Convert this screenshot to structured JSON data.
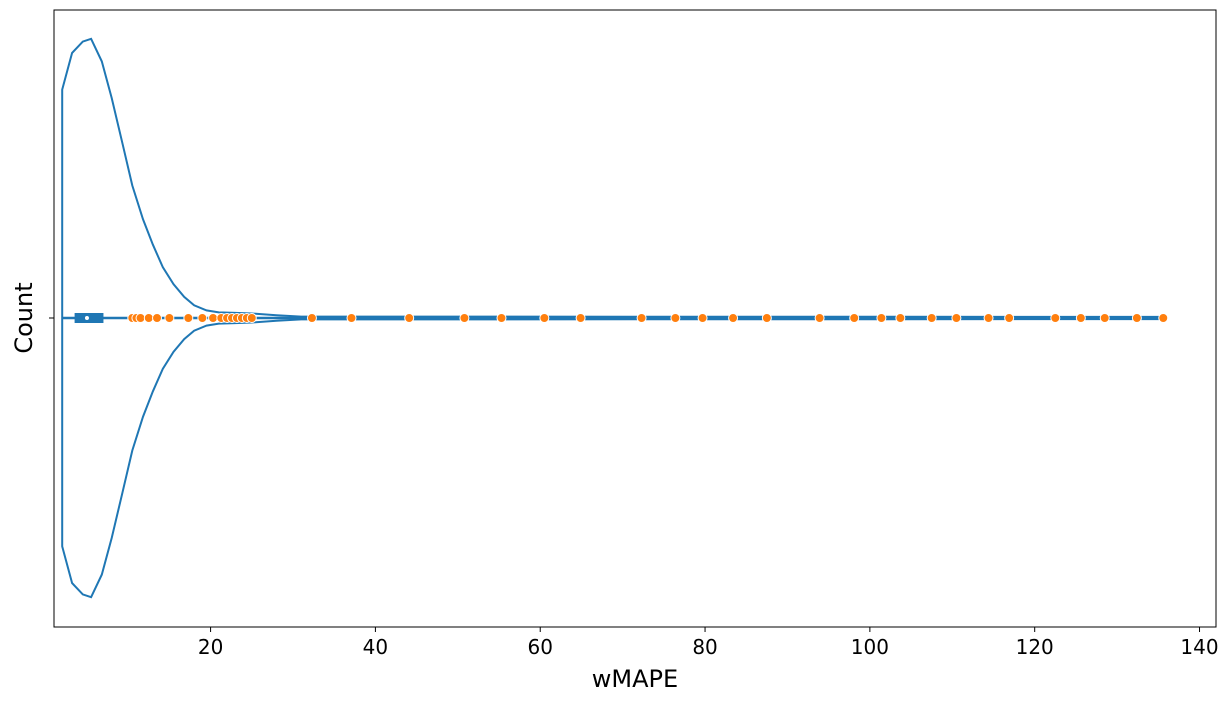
{
  "chart_data": {
    "type": "violin",
    "title": "",
    "xlabel": "wMAPE",
    "ylabel": "Count",
    "xlim": [
      1,
      142
    ],
    "x_ticks": [
      20,
      40,
      60,
      80,
      100,
      120,
      140
    ],
    "y_ticks": [
      ""
    ],
    "grid": false,
    "legend": "none",
    "violin_color": "#1f77b4",
    "point_color": "#ff7f0e",
    "violin": {
      "density_x": [
        2,
        3.2,
        4.5,
        5.5,
        6.8,
        8,
        9.3,
        10.5,
        11.8,
        13,
        14.2,
        15.5,
        16.8,
        18,
        19.5,
        21,
        23,
        25,
        28,
        31,
        135.5
      ],
      "density_y": [
        0.81,
        0.94,
        0.98,
        0.99,
        0.91,
        0.78,
        0.62,
        0.47,
        0.35,
        0.26,
        0.18,
        0.12,
        0.075,
        0.045,
        0.027,
        0.02,
        0.018,
        0.016,
        0.01,
        0.005,
        0.004
      ],
      "box": {
        "q1": 3.5,
        "median": 5.0,
        "q3": 7.0
      },
      "whisker_max": 135.5
    },
    "points": [
      10.5,
      11,
      11.5,
      12.5,
      13.5,
      15,
      17.3,
      19,
      20.3,
      21.3,
      22,
      22.6,
      23.2,
      23.8,
      24.4,
      25,
      32.3,
      37.1,
      44.1,
      50.8,
      55.3,
      60.5,
      64.9,
      72.3,
      76.4,
      79.7,
      83.4,
      87.5,
      93.9,
      98.1,
      101.4,
      103.7,
      107.5,
      110.5,
      114.4,
      116.9,
      122.5,
      125.6,
      128.5,
      132.4,
      135.6
    ]
  }
}
